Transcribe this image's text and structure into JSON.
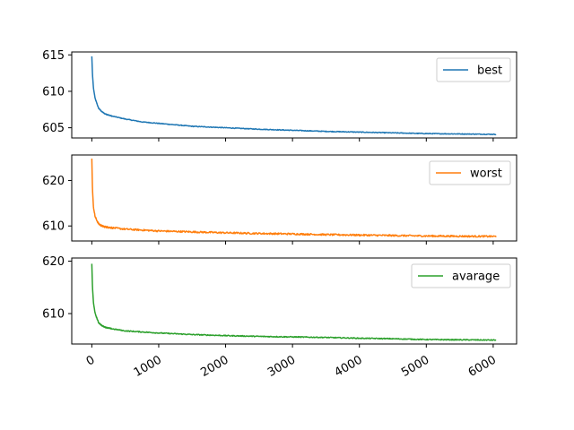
{
  "chart_data": [
    {
      "type": "line",
      "xlim": [
        -300,
        6350
      ],
      "ylim": [
        603.6,
        615.4
      ],
      "xticks": [
        0,
        1000,
        2000,
        3000,
        4000,
        5000,
        6000
      ],
      "xtick_labels": [],
      "yticks": [
        605,
        610,
        615
      ],
      "ytick_labels": [
        "605",
        "610",
        "615"
      ],
      "legend_position": "top-right",
      "series": [
        {
          "name": "best",
          "color": "#1f77b4",
          "noise": 0.05,
          "points": [
            [
              0,
              614.8
            ],
            [
              10,
              612.3
            ],
            [
              25,
              610.4
            ],
            [
              50,
              609.0
            ],
            [
              100,
              607.7
            ],
            [
              150,
              607.2
            ],
            [
              200,
              606.9
            ],
            [
              300,
              606.6
            ],
            [
              500,
              606.2
            ],
            [
              750,
              605.8
            ],
            [
              1000,
              605.6
            ],
            [
              1500,
              605.2
            ],
            [
              2000,
              605.0
            ],
            [
              2500,
              604.8
            ],
            [
              3000,
              604.65
            ],
            [
              3500,
              604.5
            ],
            [
              4000,
              604.4
            ],
            [
              4500,
              604.3
            ],
            [
              5000,
              604.2
            ],
            [
              5500,
              604.15
            ],
            [
              6000,
              604.1
            ],
            [
              6050,
              604.1
            ]
          ]
        }
      ]
    },
    {
      "type": "line",
      "xlim": [
        -300,
        6350
      ],
      "ylim": [
        606.7,
        625.6
      ],
      "xticks": [
        0,
        1000,
        2000,
        3000,
        4000,
        5000,
        6000
      ],
      "xtick_labels": [],
      "yticks": [
        610,
        620
      ],
      "ytick_labels": [
        "610",
        "620"
      ],
      "legend_position": "top-right",
      "series": [
        {
          "name": "worst",
          "color": "#ff7f0e",
          "noise": 0.18,
          "points": [
            [
              0,
              624.8
            ],
            [
              10,
              618.0
            ],
            [
              25,
              614.0
            ],
            [
              50,
              612.0
            ],
            [
              100,
              610.5
            ],
            [
              150,
              610.0
            ],
            [
              200,
              609.8
            ],
            [
              300,
              609.6
            ],
            [
              500,
              609.3
            ],
            [
              750,
              609.1
            ],
            [
              1000,
              608.9
            ],
            [
              1500,
              608.7
            ],
            [
              2000,
              608.5
            ],
            [
              2500,
              608.35
            ],
            [
              3000,
              608.25
            ],
            [
              3500,
              608.1
            ],
            [
              4000,
              608.0
            ],
            [
              4500,
              607.9
            ],
            [
              5000,
              607.8
            ],
            [
              5500,
              607.75
            ],
            [
              6000,
              607.7
            ],
            [
              6050,
              607.7
            ]
          ]
        }
      ]
    },
    {
      "type": "line",
      "xlim": [
        -300,
        6350
      ],
      "ylim": [
        604.2,
        620.6
      ],
      "xticks": [
        0,
        1000,
        2000,
        3000,
        4000,
        5000,
        6000
      ],
      "xtick_labels": [
        "0",
        "1000",
        "2000",
        "3000",
        "4000",
        "5000",
        "6000"
      ],
      "yticks": [
        610,
        620
      ],
      "ytick_labels": [
        "610",
        "620"
      ],
      "legend_position": "top-right",
      "series": [
        {
          "name": "avarage",
          "color": "#2ca02c",
          "noise": 0.09,
          "points": [
            [
              0,
              619.5
            ],
            [
              10,
              615.0
            ],
            [
              25,
              612.0
            ],
            [
              50,
              610.0
            ],
            [
              100,
              608.3
            ],
            [
              150,
              607.7
            ],
            [
              200,
              607.4
            ],
            [
              300,
              607.1
            ],
            [
              500,
              606.7
            ],
            [
              750,
              606.5
            ],
            [
              1000,
              606.3
            ],
            [
              1500,
              606.0
            ],
            [
              2000,
              605.8
            ],
            [
              2500,
              605.65
            ],
            [
              3000,
              605.55
            ],
            [
              3500,
              605.45
            ],
            [
              4000,
              605.3
            ],
            [
              4500,
              605.2
            ],
            [
              5000,
              605.05
            ],
            [
              5500,
              605.0
            ],
            [
              6000,
              604.95
            ],
            [
              6050,
              604.95
            ]
          ]
        }
      ]
    }
  ]
}
